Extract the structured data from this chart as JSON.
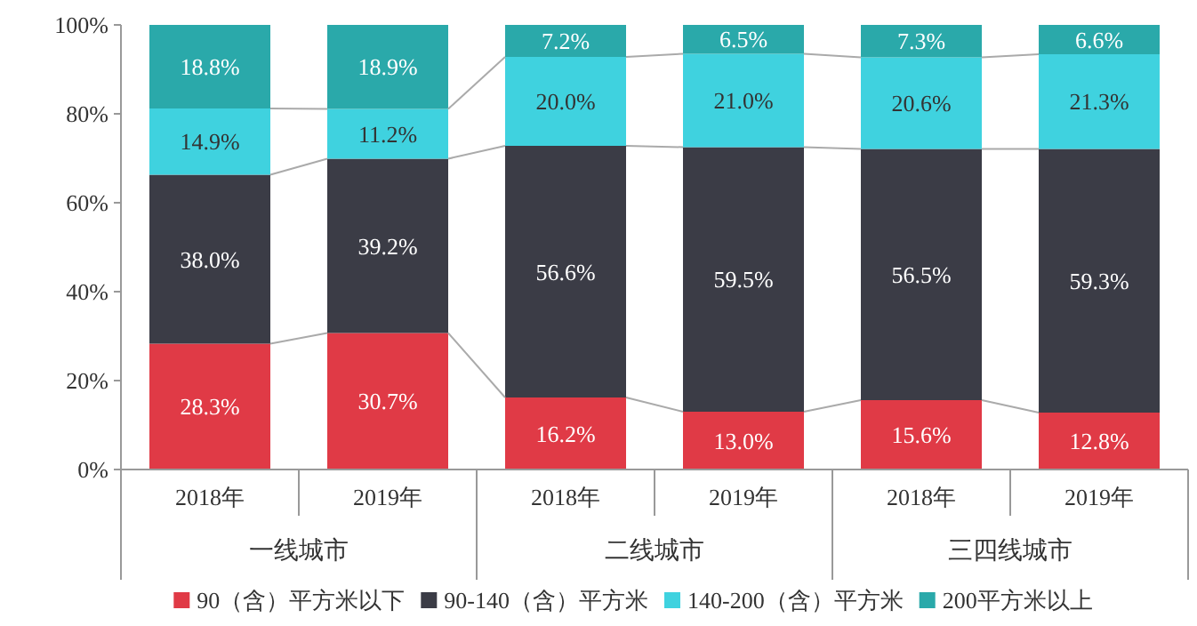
{
  "chart_data": {
    "type": "bar",
    "stacked": true,
    "categories": [
      "2018年",
      "2019年",
      "2018年",
      "2019年",
      "2018年",
      "2019年"
    ],
    "series": [
      {
        "name": "90（含）平方米以下",
        "color": "#e03a46",
        "values": [
          28.3,
          30.7,
          16.2,
          13.0,
          15.6,
          12.8
        ],
        "value_labels": [
          "28.3%",
          "30.7%",
          "16.2%",
          "13.0%",
          "15.6%",
          "12.8%"
        ]
      },
      {
        "name": "90-140（含）平方米",
        "color": "#3b3c46",
        "values": [
          38.0,
          39.2,
          56.6,
          59.5,
          56.5,
          59.3
        ],
        "value_labels": [
          "38.0%",
          "39.2%",
          "56.6%",
          "59.5%",
          "56.5%",
          "59.3%"
        ]
      },
      {
        "name": "140-200（含）平方米",
        "color": "#3fd2df",
        "values": [
          14.9,
          11.2,
          20.0,
          21.0,
          20.6,
          21.3
        ],
        "value_labels": [
          "14.9%",
          "11.2%",
          "20.0%",
          "21.0%",
          "20.6%",
          "21.3%"
        ]
      },
      {
        "name": "200平方米以上",
        "color": "#2aa9aa",
        "values": [
          18.8,
          18.9,
          7.2,
          6.5,
          7.3,
          6.6
        ],
        "value_labels": [
          "18.8%",
          "18.9%",
          "7.2%",
          "6.5%",
          "7.3%",
          "6.6%"
        ]
      }
    ],
    "ylim": [
      0,
      100
    ],
    "yticks": [
      {
        "value": 0,
        "label": "0%"
      },
      {
        "value": 20,
        "label": "20%"
      },
      {
        "value": 40,
        "label": "40%"
      },
      {
        "value": 60,
        "label": "60%"
      },
      {
        "value": 80,
        "label": "80%"
      },
      {
        "value": 100,
        "label": "100%"
      }
    ],
    "annotations": [
      "一线城市",
      "二线城市",
      "三四线城市"
    ],
    "legend": "bottom"
  }
}
